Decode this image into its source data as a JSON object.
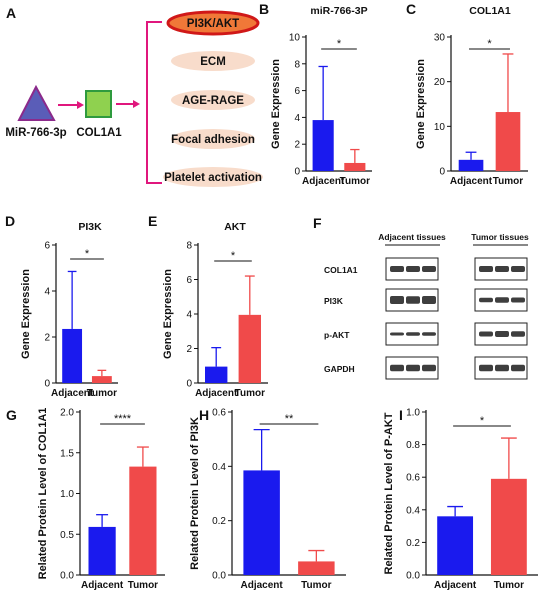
{
  "panel_a": {
    "letter": "A",
    "mirna": "MiR-766-3p",
    "gene": "COL1A1",
    "pathways": [
      "PI3K/AKT",
      "ECM",
      "AGE-RAGE",
      "Focal adhesion",
      "Platelet activation"
    ],
    "colors": {
      "triangle": "#5a5db8",
      "triangle_edge": "#8b2a8b",
      "square": "#8fd14f",
      "square_edge": "#2e9a3e",
      "arrow": "#e0177d",
      "bracket": "#e0177d",
      "oval": "#f8dccb",
      "highlight_fill": "#f07838",
      "highlight_edge": "#d01818"
    }
  },
  "panel_f": {
    "letter": "F",
    "group_labels": [
      "Adjacent tissues",
      "Tumor tissues"
    ],
    "rows": [
      "COL1A1",
      "PI3K",
      "p-AKT",
      "GAPDH"
    ]
  },
  "colors": {
    "adjacent": "#1a1aee",
    "tumor": "#f04a4a"
  },
  "chart_data": [
    {
      "letter": "B",
      "type": "bar",
      "title": "miR-766-3P",
      "ylabel": "Gene Expression",
      "xlabel": "",
      "categories": [
        "Adjacent",
        "Tumor"
      ],
      "values": [
        3.8,
        0.6
      ],
      "errors": [
        4.0,
        1.0
      ],
      "ylim": [
        0,
        10
      ],
      "yticks": [
        "0",
        "2",
        "4",
        "6",
        "8",
        "10"
      ],
      "sig": "*"
    },
    {
      "letter": "C",
      "type": "bar",
      "title": "COL1A1",
      "ylabel": "Gene Expression",
      "xlabel": "",
      "categories": [
        "Adjacent",
        "Tumor"
      ],
      "values": [
        2.5,
        13.2
      ],
      "errors": [
        1.7,
        13.0
      ],
      "ylim": [
        0,
        30
      ],
      "yticks": [
        "0",
        "10",
        "20",
        "30"
      ],
      "sig": "*"
    },
    {
      "letter": "D",
      "type": "bar",
      "title": "PI3K",
      "ylabel": "Gene Expression",
      "xlabel": "",
      "categories": [
        "Adjacent",
        "Tumor"
      ],
      "values": [
        2.35,
        0.3
      ],
      "errors": [
        2.5,
        0.25
      ],
      "ylim": [
        0,
        6
      ],
      "yticks": [
        "0",
        "2",
        "4",
        "6"
      ],
      "sig": "*"
    },
    {
      "letter": "E",
      "type": "bar",
      "title": "AKT",
      "ylabel": "Gene Expression",
      "xlabel": "",
      "categories": [
        "Adjacent",
        "Tumor"
      ],
      "values": [
        0.95,
        3.95
      ],
      "errors": [
        1.1,
        2.25
      ],
      "ylim": [
        0,
        8
      ],
      "yticks": [
        "0",
        "2",
        "4",
        "6",
        "8"
      ],
      "sig": "*"
    },
    {
      "letter": "G",
      "type": "bar",
      "title": "",
      "ylabel": "Related Protein Level of COL1A1",
      "xlabel": "",
      "categories": [
        "Adjacent",
        "Tumor"
      ],
      "values": [
        0.59,
        1.33
      ],
      "errors": [
        0.15,
        0.24
      ],
      "ylim": [
        0,
        2.0
      ],
      "yticks": [
        "0.0",
        "0.5",
        "1.0",
        "1.5",
        "2.0"
      ],
      "sig": "****"
    },
    {
      "letter": "H",
      "type": "bar",
      "title": "",
      "ylabel": "Related Protein Level of PI3K",
      "xlabel": "",
      "categories": [
        "Adjacent",
        "Tumor"
      ],
      "values": [
        0.385,
        0.05
      ],
      "errors": [
        0.15,
        0.04
      ],
      "ylim": [
        0,
        0.6
      ],
      "yticks": [
        "0.0",
        "0.2",
        "0.4",
        "0.6"
      ],
      "sig": "**"
    },
    {
      "letter": "I",
      "type": "bar",
      "title": "",
      "ylabel": "Related Protein Level of P-AKT",
      "xlabel": "",
      "categories": [
        "Adjacent",
        "Tumor"
      ],
      "values": [
        0.36,
        0.59
      ],
      "errors": [
        0.06,
        0.25
      ],
      "ylim": [
        0,
        1.0
      ],
      "yticks": [
        "0.0",
        "0.2",
        "0.4",
        "0.6",
        "0.8",
        "1.0"
      ],
      "sig": "*"
    }
  ]
}
